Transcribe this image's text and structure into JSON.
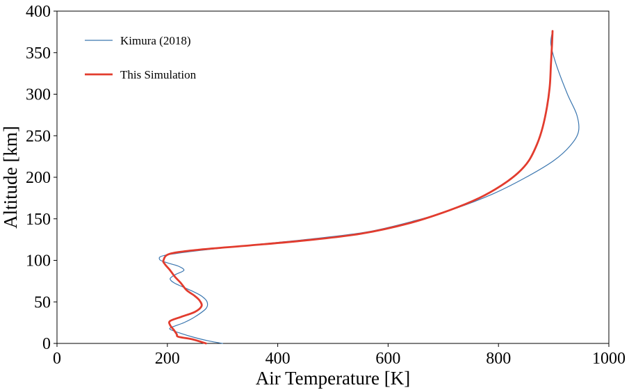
{
  "chart_data": {
    "type": "line",
    "xlabel": "Air Temperature [K]",
    "ylabel": "Altitude [km]",
    "xlim": [
      0,
      1000
    ],
    "ylim": [
      0,
      400
    ],
    "xticks": [
      "0",
      "200",
      "400",
      "600",
      "800",
      "1000"
    ],
    "yticks": [
      "0",
      "50",
      "100",
      "150",
      "200",
      "250",
      "300",
      "350",
      "400"
    ],
    "grid": false,
    "legend": "top-left",
    "series": [
      {
        "name": "Kimura (2018)",
        "color": "#3a76af",
        "linewidth": "thin",
        "points": [
          [
            300,
            0
          ],
          [
            275,
            3
          ],
          [
            250,
            7
          ],
          [
            225,
            12
          ],
          [
            205,
            17
          ],
          [
            210,
            20
          ],
          [
            230,
            25
          ],
          [
            250,
            32
          ],
          [
            270,
            42
          ],
          [
            272,
            50
          ],
          [
            262,
            57
          ],
          [
            245,
            63
          ],
          [
            228,
            68
          ],
          [
            212,
            73
          ],
          [
            205,
            78
          ],
          [
            215,
            83
          ],
          [
            230,
            88
          ],
          [
            220,
            93
          ],
          [
            200,
            97
          ],
          [
            186,
            101
          ],
          [
            195,
            106
          ],
          [
            260,
            112
          ],
          [
            360,
            119
          ],
          [
            450,
            125
          ],
          [
            560,
            134
          ],
          [
            650,
            148
          ],
          [
            720,
            162
          ],
          [
            790,
            180
          ],
          [
            850,
            200
          ],
          [
            900,
            220
          ],
          [
            930,
            238
          ],
          [
            945,
            255
          ],
          [
            942,
            275
          ],
          [
            925,
            300
          ],
          [
            905,
            335
          ],
          [
            895,
            360
          ],
          [
            898,
            376
          ]
        ]
      },
      {
        "name": "This Simulation",
        "color": "#e23c2e",
        "linewidth": "thick",
        "points": [
          [
            270,
            0
          ],
          [
            245,
            5
          ],
          [
            220,
            8
          ],
          [
            217,
            11
          ],
          [
            212,
            16
          ],
          [
            205,
            22
          ],
          [
            205,
            27
          ],
          [
            225,
            32
          ],
          [
            250,
            38
          ],
          [
            262,
            45
          ],
          [
            258,
            52
          ],
          [
            248,
            58
          ],
          [
            235,
            64
          ],
          [
            224,
            73
          ],
          [
            214,
            80
          ],
          [
            205,
            88
          ],
          [
            196,
            95
          ],
          [
            193,
            100
          ],
          [
            205,
            108
          ],
          [
            260,
            113
          ],
          [
            350,
            118
          ],
          [
            450,
            124
          ],
          [
            550,
            132
          ],
          [
            640,
            145
          ],
          [
            710,
            160
          ],
          [
            765,
            175
          ],
          [
            805,
            190
          ],
          [
            835,
            205
          ],
          [
            855,
            220
          ],
          [
            870,
            240
          ],
          [
            880,
            260
          ],
          [
            888,
            285
          ],
          [
            893,
            310
          ],
          [
            895,
            335
          ],
          [
            897,
            360
          ],
          [
            898,
            376
          ]
        ]
      }
    ]
  }
}
